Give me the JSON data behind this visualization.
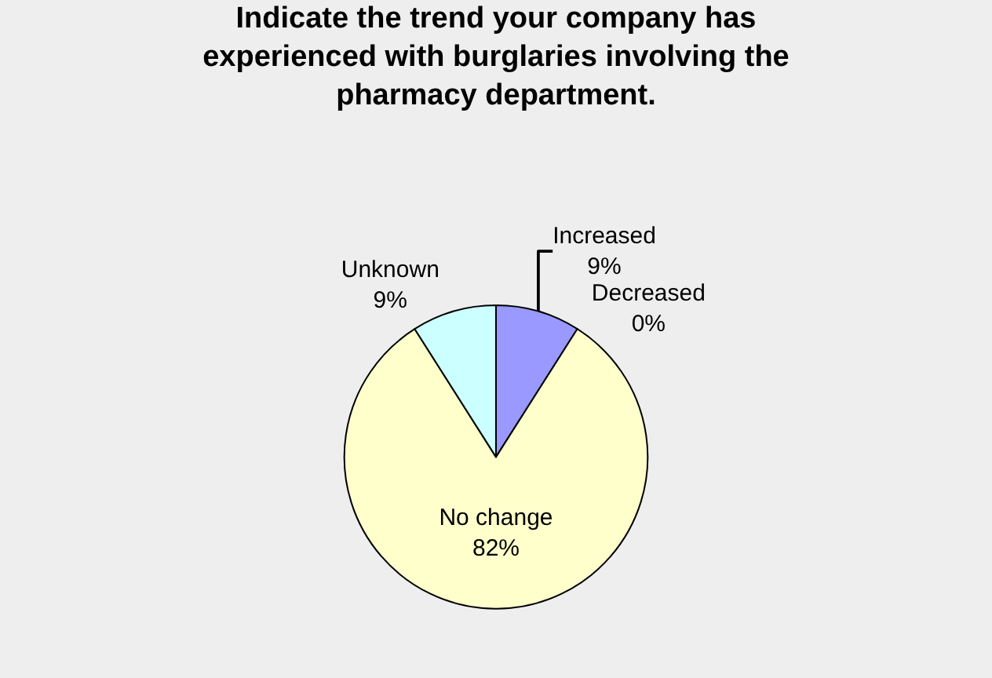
{
  "chart_data": {
    "type": "pie",
    "title": "Indicate the trend your company has experienced with burglaries involving the pharmacy department.",
    "categories": [
      "Increased",
      "Decreased",
      "No change",
      "Unknown"
    ],
    "values": [
      9,
      0,
      82,
      9
    ],
    "value_labels": [
      "9%",
      "0%",
      "82%",
      "9%"
    ],
    "colors": [
      "#9999ff",
      "#993366",
      "#ffffcc",
      "#ccffff"
    ],
    "legend": false
  }
}
